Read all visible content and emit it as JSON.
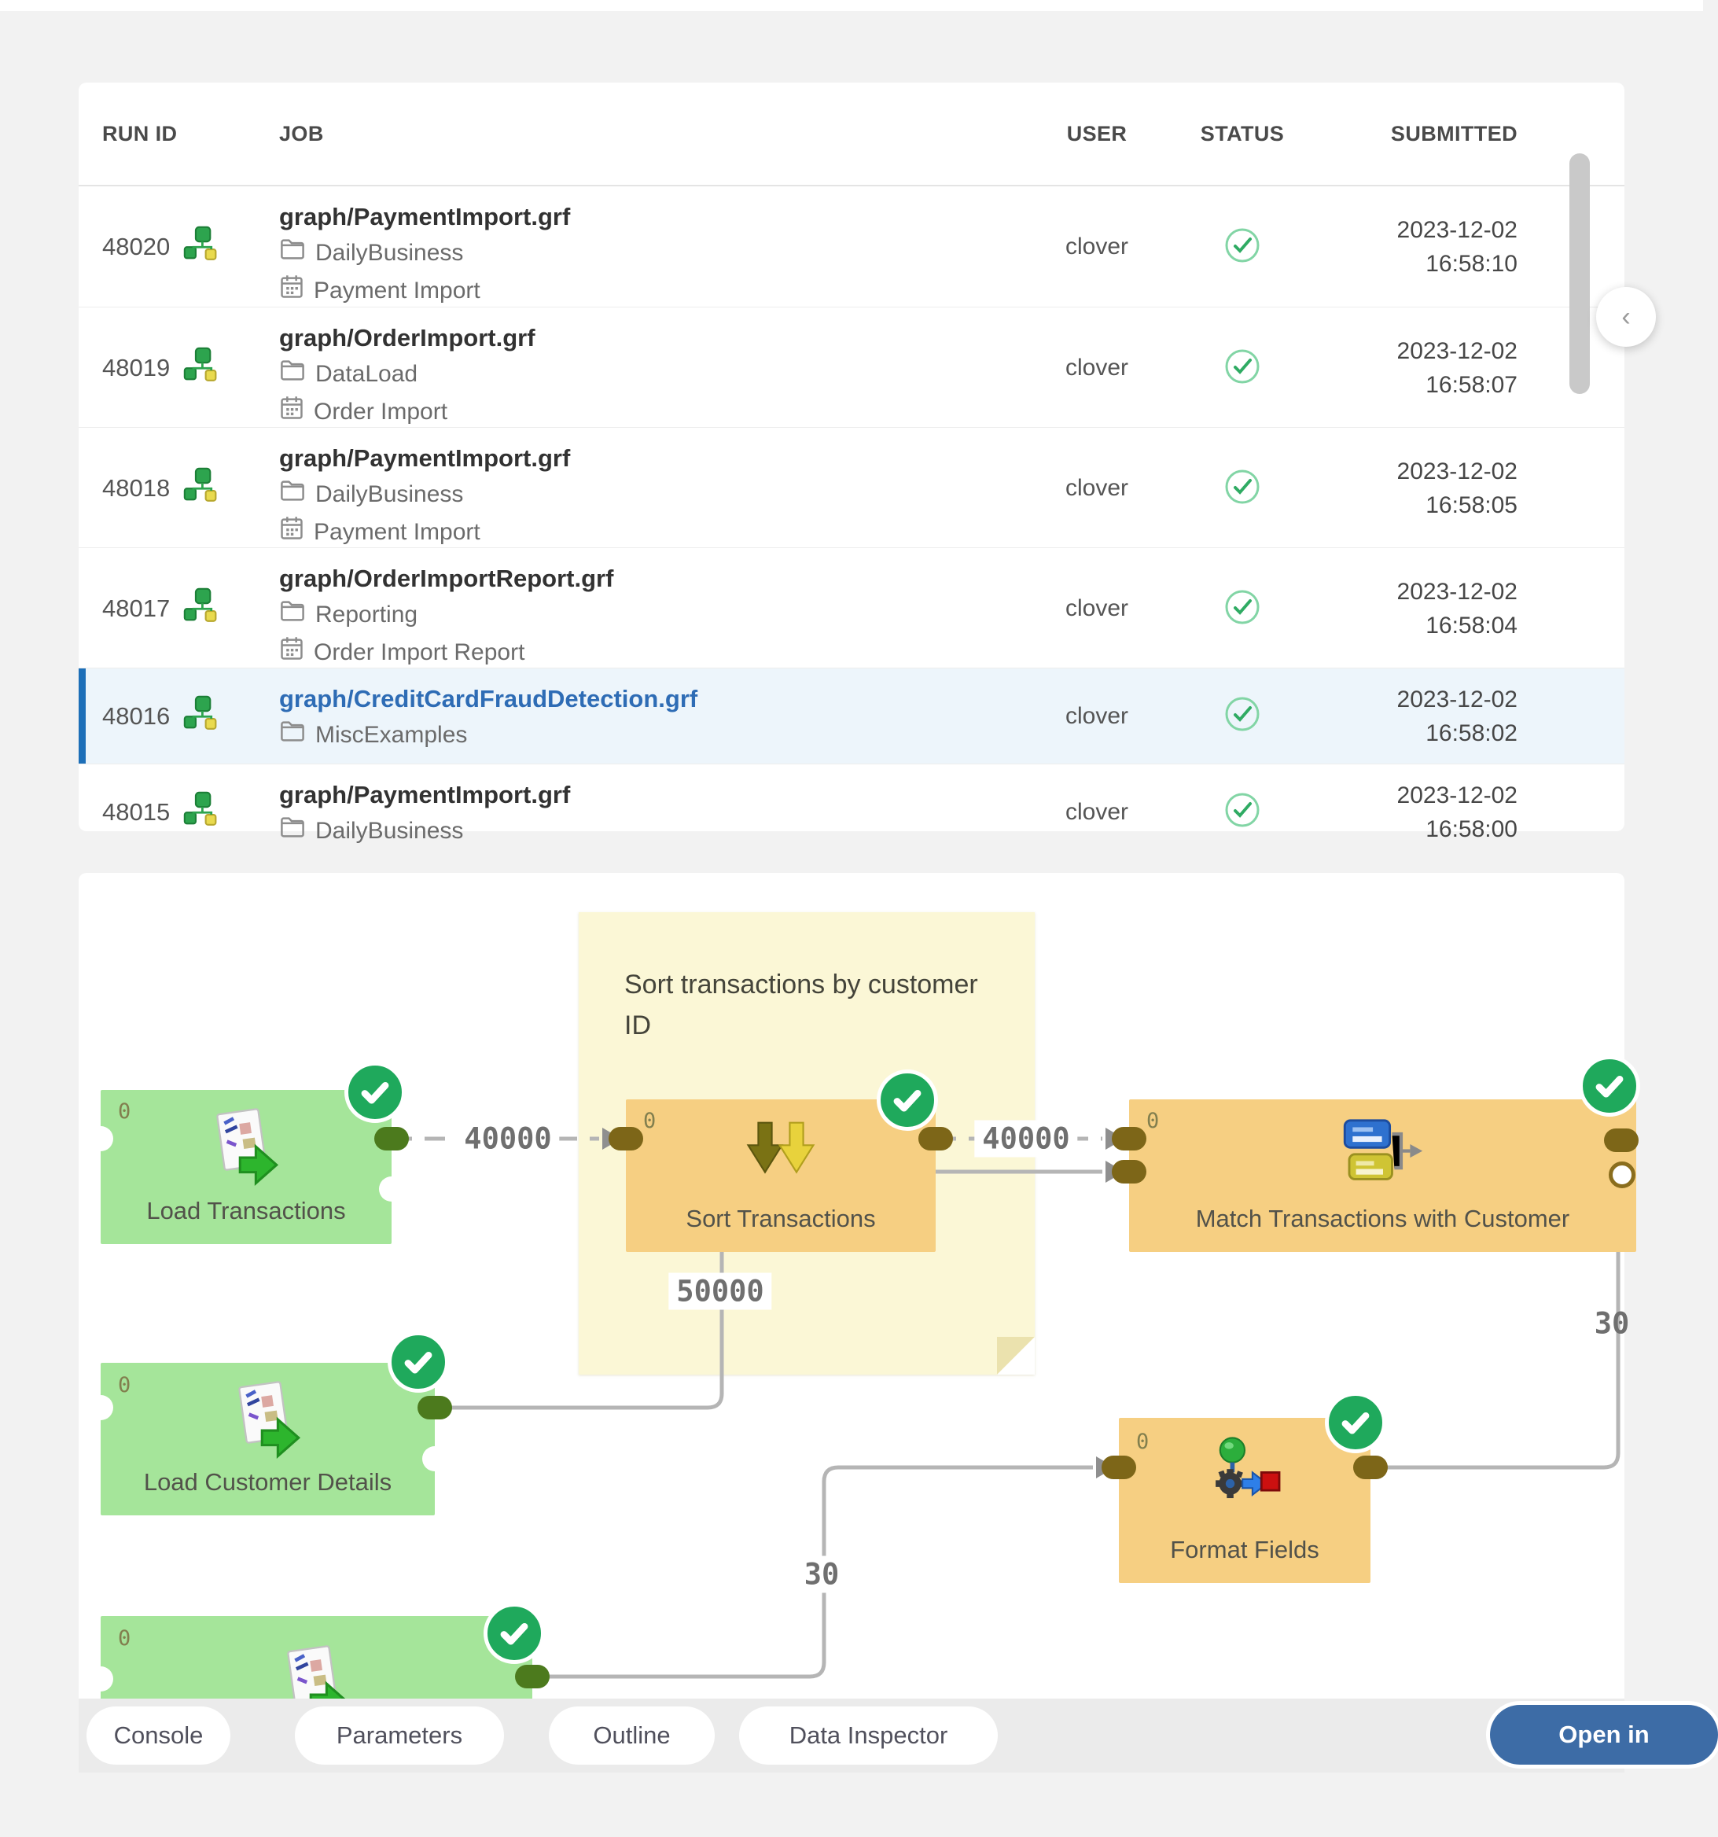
{
  "table": {
    "columns": [
      "RUN ID",
      "JOB",
      "USER",
      "STATUS",
      "SUBMITTED"
    ],
    "rows": [
      {
        "id": "48020",
        "job": "graph/PaymentImport.grf",
        "sandbox": "DailyBusiness",
        "schedule": "Payment Import",
        "user": "clover",
        "status": "success",
        "date": "2023-12-02",
        "time": "16:58:10",
        "selected": false
      },
      {
        "id": "48019",
        "job": "graph/OrderImport.grf",
        "sandbox": "DataLoad",
        "schedule": "Order Import",
        "user": "clover",
        "status": "success",
        "date": "2023-12-02",
        "time": "16:58:07",
        "selected": false
      },
      {
        "id": "48018",
        "job": "graph/PaymentImport.grf",
        "sandbox": "DailyBusiness",
        "schedule": "Payment Import",
        "user": "clover",
        "status": "success",
        "date": "2023-12-02",
        "time": "16:58:05",
        "selected": false
      },
      {
        "id": "48017",
        "job": "graph/OrderImportReport.grf",
        "sandbox": "Reporting",
        "schedule": "Order Import Report",
        "user": "clover",
        "status": "success",
        "date": "2023-12-02",
        "time": "16:58:04",
        "selected": false
      },
      {
        "id": "48016",
        "job": "graph/CreditCardFraudDetection.grf",
        "sandbox": "MiscExamples",
        "schedule": null,
        "user": "clover",
        "status": "success",
        "date": "2023-12-02",
        "time": "16:58:02",
        "selected": true
      },
      {
        "id": "48015",
        "job": "graph/PaymentImport.grf",
        "sandbox": "DailyBusiness",
        "schedule": null,
        "user": "clover",
        "status": "success",
        "date": "2023-12-02",
        "time": "16:58:00",
        "selected": false
      }
    ]
  },
  "graph": {
    "note": {
      "text": "Sort transactions by customer ID"
    },
    "nodes": {
      "load_transactions": {
        "label": "Load Transactions",
        "port_count": "0",
        "status": "success"
      },
      "sort_transactions": {
        "label": "Sort Transactions",
        "port_count": "0",
        "status": "success"
      },
      "match_transactions": {
        "label": "Match Transactions with Customer",
        "port_count": "0",
        "status": "success"
      },
      "load_customer_details": {
        "label": "Load Customer Details",
        "port_count": "0",
        "status": "success"
      },
      "format_fields": {
        "label": "Format Fields",
        "port_count": "0",
        "status": "success"
      },
      "loader_partial": {
        "port_count": "0",
        "status": "success"
      }
    },
    "edges": {
      "load_transactions_to_sort": "40000",
      "sort_to_match": "40000",
      "load_customer_details_to_match": "50000",
      "loader_to_format_fields": "30",
      "format_fields_to_match": "30"
    }
  },
  "footer": {
    "buttons": [
      "Console",
      "Parameters",
      "Outline",
      "Data Inspector"
    ],
    "open_in_label": "Open in"
  },
  "colors": {
    "accent_blue": "#2e6cb5",
    "selected_row_bg": "#edf5fb",
    "selected_row_border": "#1d6fb8",
    "success_green": "#1fa95c",
    "green_node": "#a5e59a",
    "orange_node": "#f6cf82",
    "sticky_note": "#fbf7d6",
    "edge_gray": "#b5b5b5",
    "port_brown": "#7d6618",
    "port_green": "#4c7a1d",
    "open_in_button": "#3d6ca6"
  }
}
